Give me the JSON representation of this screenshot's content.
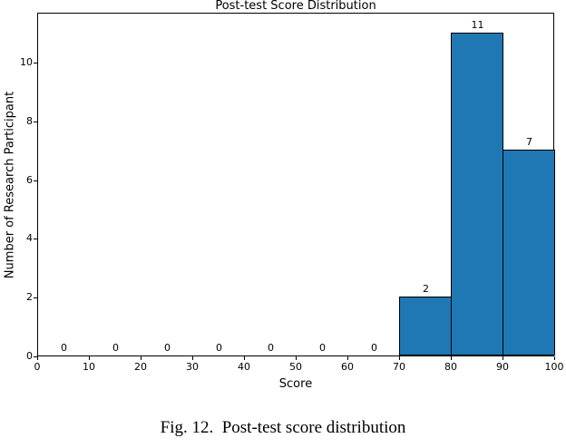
{
  "figure": {
    "caption": "Fig. 12.  Post-test score distribution"
  },
  "chart_data": {
    "type": "bar",
    "subtype": "histogram",
    "title": "Post-test Score Distribution",
    "xlabel": "Score",
    "ylabel": "Number of Research Participant",
    "bin_edges": [
      0,
      10,
      20,
      30,
      40,
      50,
      60,
      70,
      80,
      90,
      100
    ],
    "counts": [
      0,
      0,
      0,
      0,
      0,
      0,
      0,
      2,
      11,
      7
    ],
    "bar_value_labels": [
      "0",
      "0",
      "0",
      "0",
      "0",
      "0",
      "0",
      "2",
      "11",
      "7"
    ],
    "x_tick_labels": [
      "0",
      "10",
      "20",
      "30",
      "40",
      "50",
      "60",
      "70",
      "80",
      "90",
      "100"
    ],
    "y_tick_labels": [
      "0",
      "2",
      "4",
      "6",
      "8",
      "10"
    ],
    "x_ticks": [
      0,
      10,
      20,
      30,
      40,
      50,
      60,
      70,
      80,
      90,
      100
    ],
    "y_ticks": [
      0,
      2,
      4,
      6,
      8,
      10
    ],
    "xlim": [
      0,
      100
    ],
    "ylim": [
      0,
      11.7
    ],
    "grid": false,
    "legend": null,
    "bar_fill_color": "#1f77b4",
    "bar_edge_color": "#000000",
    "axis_color": "#000000",
    "background_color": "#ffffff"
  }
}
